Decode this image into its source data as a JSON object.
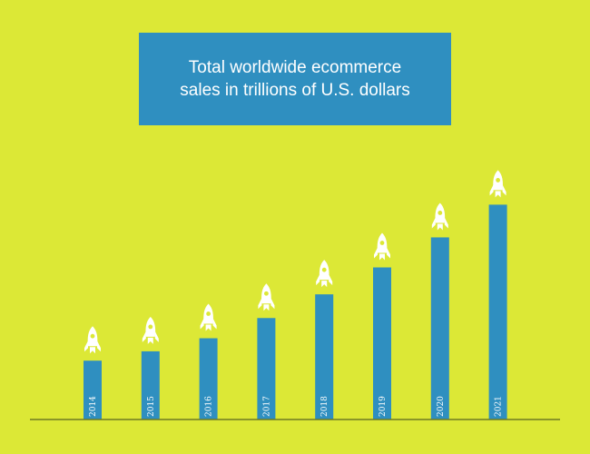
{
  "chart_data": {
    "type": "bar",
    "title_lines": [
      "Total worldwide ecommerce",
      "sales in trillions of U.S. dollars"
    ],
    "categories": [
      "2014",
      "2015",
      "2016",
      "2017",
      "2018",
      "2019",
      "2020",
      "2021"
    ],
    "values": [
      1.336,
      1.548,
      1.845,
      2.304,
      2.842,
      3.453,
      4.135,
      4.878
    ],
    "colors": {
      "background": "#dce836",
      "bar": "#2f8fc0",
      "baseline": "#6f7a22",
      "rocket": "#ffffff"
    },
    "icon": "rocket-icon"
  }
}
